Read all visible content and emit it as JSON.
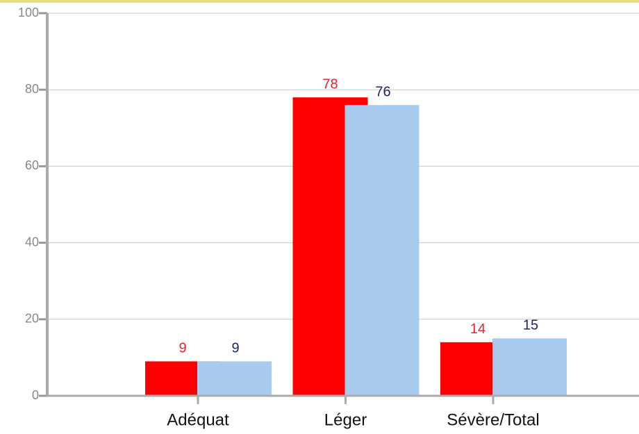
{
  "chart_data": {
    "type": "bar",
    "categories": [
      "Adéquat",
      "Léger",
      "Sévère/Total"
    ],
    "series": [
      {
        "color": "#ff0000",
        "label_color": "#e8232a",
        "values": [
          9,
          78,
          14
        ]
      },
      {
        "color": "#a8caee",
        "label_color": "#1c2470",
        "values": [
          9,
          76,
          15
        ]
      }
    ],
    "ylim": [
      0,
      100
    ],
    "yticks": [
      0,
      20,
      40,
      60,
      80,
      100
    ],
    "grid": true
  }
}
